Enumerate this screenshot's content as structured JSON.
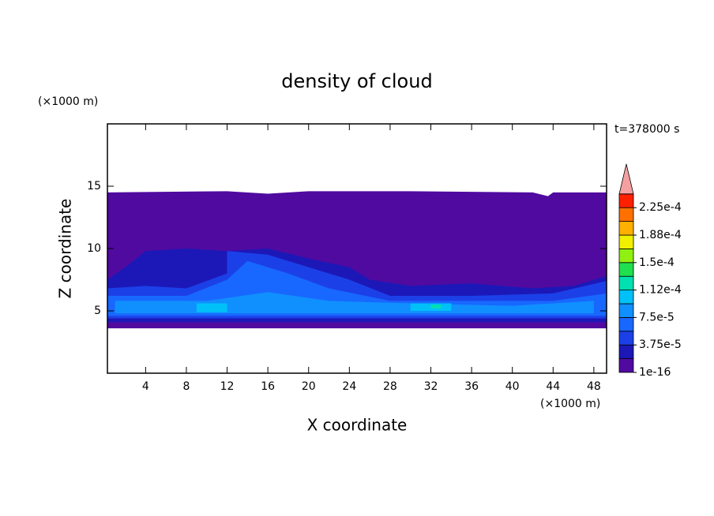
{
  "chart_data": {
    "type": "contour",
    "title": "density of cloud",
    "time_label": "t=378000 s",
    "x_label": "X coordinate",
    "y_label": "Z coordinate",
    "x_unit": "(×1000 m)",
    "y_unit": "(×1000 m)",
    "xlim": [
      0.25,
      49.25
    ],
    "ylim": [
      0,
      20
    ],
    "xticks": [
      4,
      8,
      12,
      16,
      20,
      24,
      28,
      32,
      36,
      40,
      44,
      48
    ],
    "yticks": [
      5,
      10,
      15
    ],
    "colorbar": {
      "levels": [
        1e-16,
        1.875e-05,
        3.75e-05,
        5.625e-05,
        7.5e-05,
        9.375e-05,
        0.0001125,
        0.00013125,
        0.00015,
        0.00016875,
        0.0001875,
        0.00020625,
        0.000225
      ],
      "colors": [
        "#500aa0",
        "#1c18b8",
        "#1c40e8",
        "#1868ff",
        "#1090ff",
        "#00c0f8",
        "#00e0b0",
        "#20e050",
        "#90f010",
        "#f0f000",
        "#ffb000",
        "#ff7000",
        "#ff2000"
      ],
      "extend_color": "#f4a0a0",
      "ticks": [
        1e-16,
        {
          "value": 3.75e-05,
          "label": "3.75e-5"
        },
        {
          "value": 7.5e-05,
          "label": "7.5e-5"
        },
        {
          "value": 0.0001125,
          "label": "1.12e-4"
        },
        {
          "value": 0.00015,
          "label": "1.5e-4"
        },
        {
          "value": 0.0001875,
          "label": "1.88e-4"
        },
        {
          "value": 0.000225,
          "label": "2.25e-4"
        }
      ]
    },
    "regions": [
      {
        "level": 1e-16,
        "points": [
          [
            0.25,
            3.6
          ],
          [
            49.25,
            3.6
          ],
          [
            49.25,
            14.5
          ],
          [
            44,
            14.5
          ],
          [
            43.5,
            14.2
          ],
          [
            42,
            14.5
          ],
          [
            30,
            14.6
          ],
          [
            20,
            14.6
          ],
          [
            16,
            14.4
          ],
          [
            12,
            14.6
          ],
          [
            0.25,
            14.5
          ]
        ]
      },
      {
        "level": 1.875e-05,
        "points": [
          [
            0.25,
            4.1
          ],
          [
            49.25,
            4.1
          ],
          [
            49.25,
            7.8
          ],
          [
            46,
            7.0
          ],
          [
            42,
            6.8
          ],
          [
            36,
            7.2
          ],
          [
            30,
            7.0
          ],
          [
            26,
            7.5
          ],
          [
            24,
            8.5
          ],
          [
            20,
            9.2
          ],
          [
            16,
            10.0
          ],
          [
            12,
            9.8
          ],
          [
            8,
            10.0
          ],
          [
            4,
            9.8
          ],
          [
            2,
            8.5
          ],
          [
            0.25,
            7.5
          ]
        ]
      },
      {
        "level": 3.75e-05,
        "points": [
          [
            0.25,
            4.4
          ],
          [
            49.25,
            4.4
          ],
          [
            49.25,
            7.4
          ],
          [
            44,
            6.4
          ],
          [
            36,
            6.2
          ],
          [
            28,
            6.2
          ],
          [
            24,
            7.5
          ],
          [
            20,
            8.5
          ],
          [
            16,
            9.5
          ],
          [
            12,
            9.8
          ],
          [
            12,
            8.0
          ],
          [
            8,
            6.8
          ],
          [
            4,
            7.0
          ],
          [
            0.25,
            6.8
          ]
        ]
      },
      {
        "level": 5.625e-05,
        "points": [
          [
            0.25,
            4.6
          ],
          [
            49.25,
            4.6
          ],
          [
            49.25,
            6.4
          ],
          [
            44,
            5.8
          ],
          [
            36,
            5.8
          ],
          [
            28,
            5.8
          ],
          [
            22,
            6.8
          ],
          [
            18,
            8.0
          ],
          [
            14,
            9.0
          ],
          [
            12,
            7.5
          ],
          [
            8,
            6.2
          ],
          [
            0.25,
            6.2
          ]
        ]
      },
      {
        "level": 7.5e-05,
        "points": [
          [
            1,
            4.8
          ],
          [
            48,
            4.8
          ],
          [
            48,
            5.8
          ],
          [
            40,
            5.4
          ],
          [
            30,
            5.6
          ],
          [
            22,
            5.8
          ],
          [
            16,
            6.5
          ],
          [
            10,
            5.8
          ],
          [
            1,
            5.8
          ]
        ]
      },
      {
        "level": 9.375e-05,
        "points": [
          [
            9,
            4.9
          ],
          [
            12,
            4.9
          ],
          [
            12,
            5.6
          ],
          [
            9,
            5.6
          ]
        ]
      },
      {
        "level": 9.375e-05,
        "points": [
          [
            30,
            5.0
          ],
          [
            34,
            5.0
          ],
          [
            34,
            5.6
          ],
          [
            30,
            5.6
          ]
        ]
      },
      {
        "level": 0.0001125,
        "points": [
          [
            32,
            5.2
          ],
          [
            33,
            5.2
          ],
          [
            33,
            5.5
          ],
          [
            32,
            5.5
          ]
        ]
      }
    ]
  }
}
